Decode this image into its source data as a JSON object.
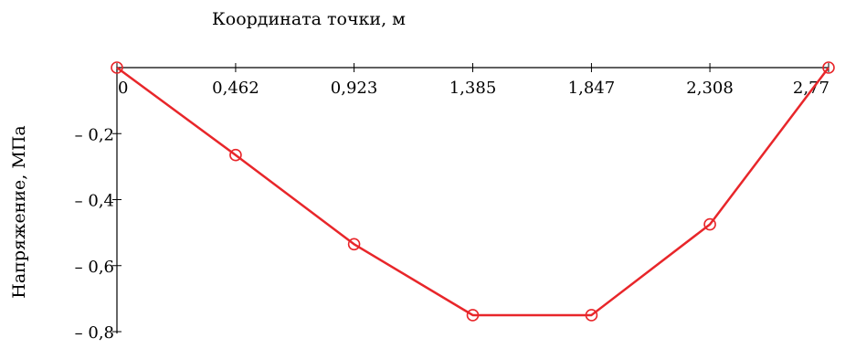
{
  "chart_data": {
    "type": "line",
    "xlabel": "Координата точки, м",
    "ylabel": "Напряжение, МПа",
    "x_tick_labels": [
      "0",
      "0,462",
      "0,923",
      "1,385",
      "1,847",
      "2,308",
      "2,77"
    ],
    "y_tick_labels": [
      "– 0,2",
      "– 0,4",
      "– 0,6",
      "– 0,8"
    ],
    "xlim": [
      0,
      2.77
    ],
    "ylim": [
      -0.8,
      0
    ],
    "x_ticks": [
      0,
      0.462,
      0.923,
      1.385,
      1.847,
      2.308,
      2.77
    ],
    "y_ticks": [
      -0.2,
      -0.4,
      -0.6,
      -0.8
    ],
    "series": [
      {
        "x": [
          0,
          0.462,
          0.923,
          1.385,
          1.847,
          2.308,
          2.77
        ],
        "y": [
          0,
          -0.265,
          -0.535,
          -0.75,
          -0.75,
          -0.475,
          0
        ],
        "color": "#e8262a",
        "marker": "open-circle"
      }
    ]
  }
}
